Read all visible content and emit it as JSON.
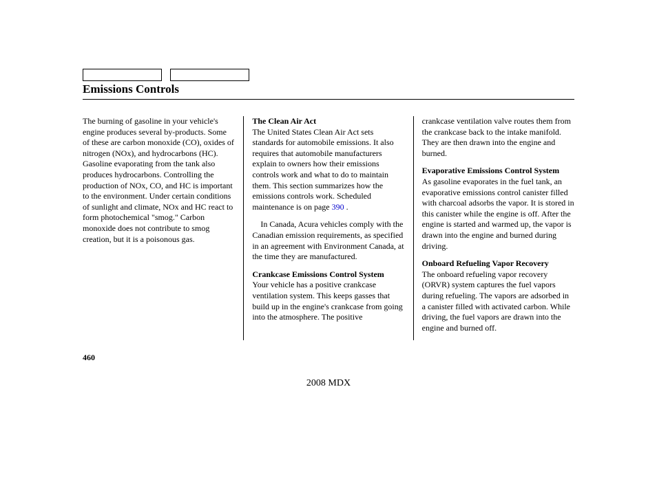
{
  "title": "Emissions Controls",
  "col1": {
    "p1": "The burning of gasoline in your vehicle's engine produces several by-products. Some of these are carbon monoxide (CO), oxides of nitrogen (NOx), and hydrocarbons (HC). Gasoline evaporating from the tank also produces hydrocarbons. Controlling the production of NOx, CO, and HC is important to the environment. Under certain conditions of sunlight and climate, NOx and HC react to form photochemical \"smog.\" Carbon monoxide does not contribute to smog creation, but it is a poisonous gas."
  },
  "col2": {
    "h1": "The Clean Air Act",
    "p1a": "The United States Clean Air Act sets standards for automobile emissions. It also requires that automobile manufacturers explain to owners how their emissions controls work and what to do to maintain them. This section summarizes how the emissions controls work. Scheduled maintenance is on page ",
    "p1link": "390",
    "p1b": " .",
    "p2": "In Canada, Acura vehicles comply with the Canadian emission requirements, as specified in an agreement with Environment Canada, at the time they are manufactured.",
    "h2": "Crankcase Emissions Control System",
    "p3": "Your vehicle has a positive crankcase ventilation system. This keeps gasses that build up in the engine's crankcase from going into the atmosphere. The positive"
  },
  "col3": {
    "p1": "crankcase ventilation valve routes them from the crankcase back to the intake manifold. They are then drawn into the engine and burned.",
    "h1": "Evaporative Emissions Control System",
    "p2": "As gasoline evaporates in the fuel tank, an evaporative emissions control canister filled with charcoal adsorbs the vapor. It is stored in this canister while the engine is off. After the engine is started and warmed up, the vapor is drawn into the engine and burned during driving.",
    "h2": "Onboard Refueling Vapor Recovery",
    "p3": "The onboard refueling vapor recovery (ORVR) system captures the fuel vapors during refueling. The vapors are adsorbed in a canister filled with activated carbon. While driving, the fuel vapors are drawn into the engine and burned off."
  },
  "page_num": "460",
  "footer": "2008  MDX"
}
